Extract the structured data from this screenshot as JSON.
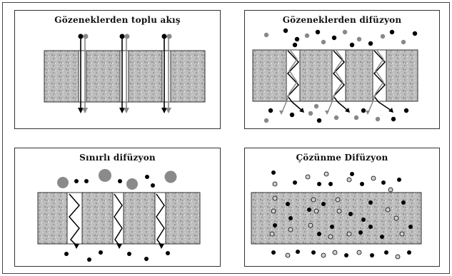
{
  "panels": {
    "bulk_flow": {
      "title": "Gözeneklerden toplu akış"
    },
    "pore_diffusion": {
      "title": "Gözeneklerden difüzyon"
    },
    "boundary_diffusion": {
      "title": "Sınırlı difüzyon"
    },
    "solution_diffusion": {
      "title": "Çözünme Difüzyon"
    }
  },
  "colors": {
    "membrane_fill": "#b8b8b8",
    "particle_black": "#000000",
    "particle_gray": "#8a8a8a",
    "particle_light": "#cfcfcf"
  }
}
